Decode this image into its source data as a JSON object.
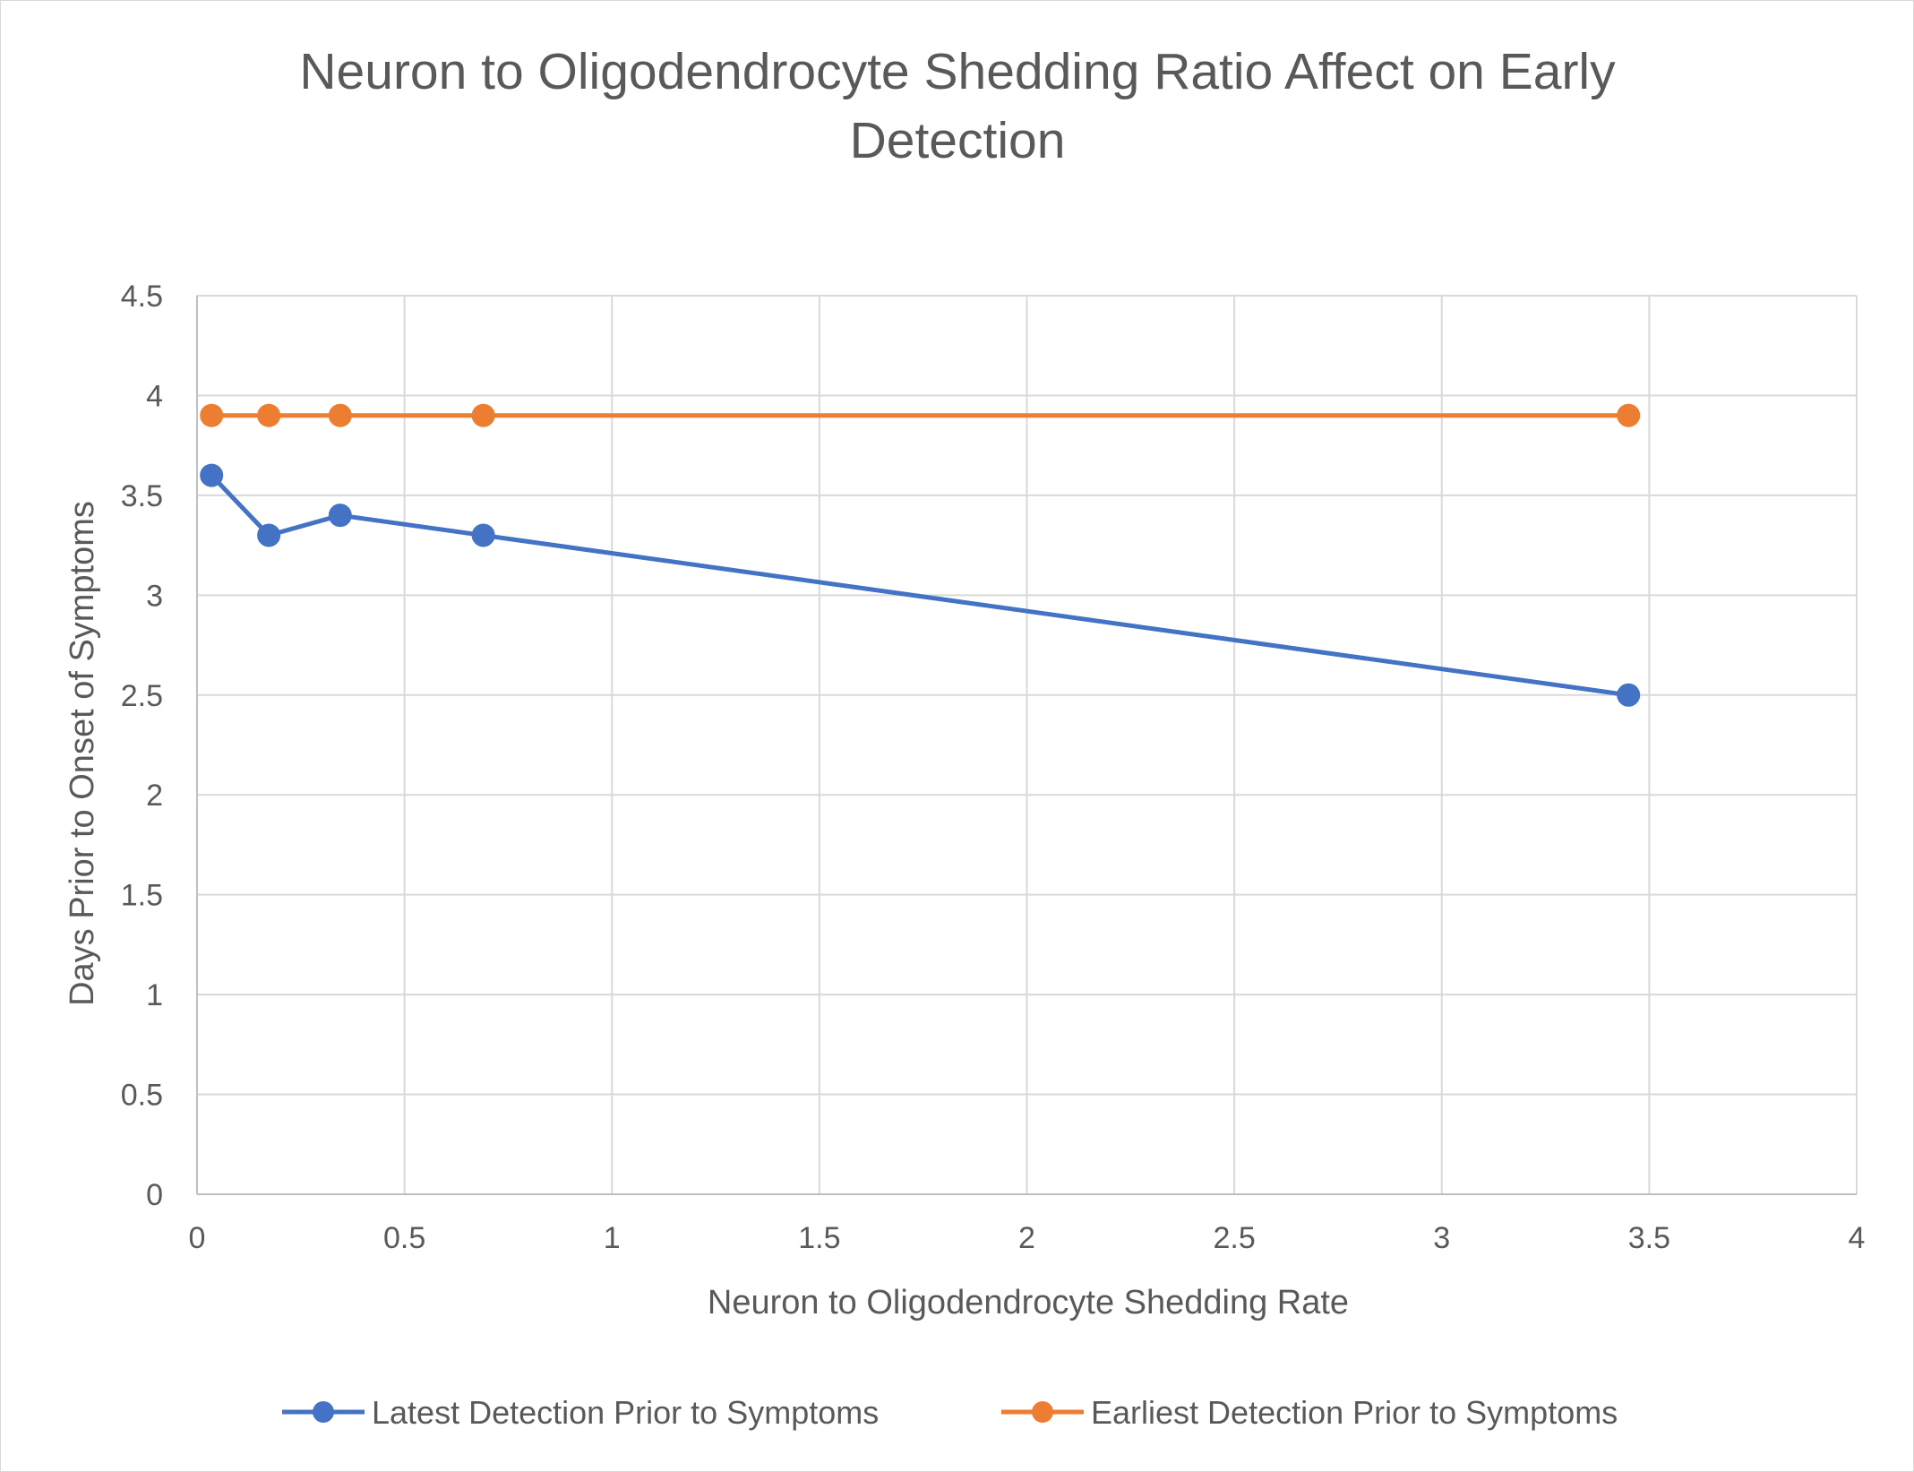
{
  "chart_data": {
    "type": "line",
    "title_lines": [
      "Neuron to Oligodendrocyte Shedding Ratio Affect on Early",
      "Detection"
    ],
    "xlabel": "Neuron to Oligodendrocyte Shedding Rate",
    "ylabel": "Days Prior to Onset of Symptoms",
    "xlim": [
      0,
      4
    ],
    "ylim": [
      0,
      4.5
    ],
    "xticks": [
      "0",
      "0.5",
      "1",
      "1.5",
      "2",
      "2.5",
      "3",
      "3.5",
      "4"
    ],
    "yticks": [
      "0",
      "0.5",
      "1",
      "1.5",
      "2",
      "2.5",
      "3",
      "3.5",
      "4",
      "4.5"
    ],
    "grid": true,
    "legend_position": "bottom",
    "series": [
      {
        "name": "Latest Detection Prior to Symptoms",
        "color": "#4472c4",
        "x": [
          0.035,
          0.173,
          0.345,
          0.69,
          3.45
        ],
        "y": [
          3.6,
          3.3,
          3.4,
          3.3,
          2.5
        ]
      },
      {
        "name": "Earliest Detection Prior to Symptoms",
        "color": "#ed7d31",
        "x": [
          0.035,
          0.173,
          0.345,
          0.69,
          3.45
        ],
        "y": [
          3.9,
          3.9,
          3.9,
          3.9,
          3.9
        ]
      }
    ]
  }
}
